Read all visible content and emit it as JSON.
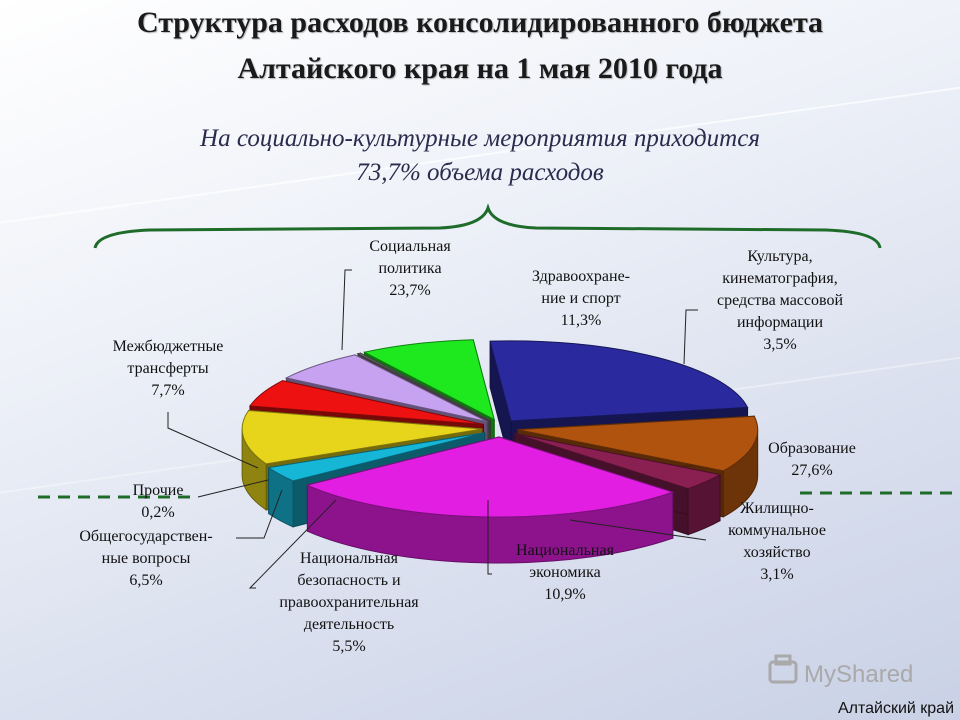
{
  "title_line1": "Структура расходов консолидированного бюджета",
  "title_line2": "Алтайского края на 1 мая 2010 года",
  "subtitle_line1": "На социально-культурные мероприятия приходится",
  "subtitle_line2": "73,7% объема расходов",
  "watermark": "MyShared",
  "region_label": "Алтайский край",
  "chart_data": {
    "type": "pie",
    "unit": "%",
    "slices": [
      {
        "label": [
          "Социальная",
          "политика"
        ],
        "value": 23.7,
        "value_text": "23,7%",
        "color": "#2a2a9e"
      },
      {
        "label": [
          "Здравоохране-",
          "ние и спорт"
        ],
        "value": 11.3,
        "value_text": "11,3%",
        "color": "#b0530f"
      },
      {
        "label": [
          "Культура,",
          "кинематография,",
          "средства массовой",
          "информации"
        ],
        "value": 3.5,
        "value_text": "3,5%",
        "color": "#8a1f52"
      },
      {
        "label": [
          "Образование"
        ],
        "value": 27.6,
        "value_text": "27,6%",
        "color": "#e31ee3"
      },
      {
        "label": [
          "Жилищно-",
          "коммунальное",
          "хозяйство"
        ],
        "value": 3.1,
        "value_text": "3,1%",
        "color": "#16b6d6"
      },
      {
        "label": [
          "Национальная",
          "экономика"
        ],
        "value": 10.9,
        "value_text": "10,9%",
        "color": "#e6d51a"
      },
      {
        "label": [
          "Национальная",
          "безопасность и",
          "правоохранительная",
          "деятельность"
        ],
        "value": 5.5,
        "value_text": "5,5%",
        "color": "#ee1111"
      },
      {
        "label": [
          "Общегосударствен-",
          "ные вопросы"
        ],
        "value": 6.5,
        "value_text": "6,5%",
        "color": "#c6a2f0"
      },
      {
        "label": [
          "Прочие"
        ],
        "value": 0.2,
        "value_text": "0,2%",
        "color": "#7a7a7a"
      },
      {
        "label": [
          "Межбюджетные",
          "трансферты"
        ],
        "value": 7.7,
        "value_text": "7,7%",
        "color": "#1ee81e"
      }
    ]
  }
}
